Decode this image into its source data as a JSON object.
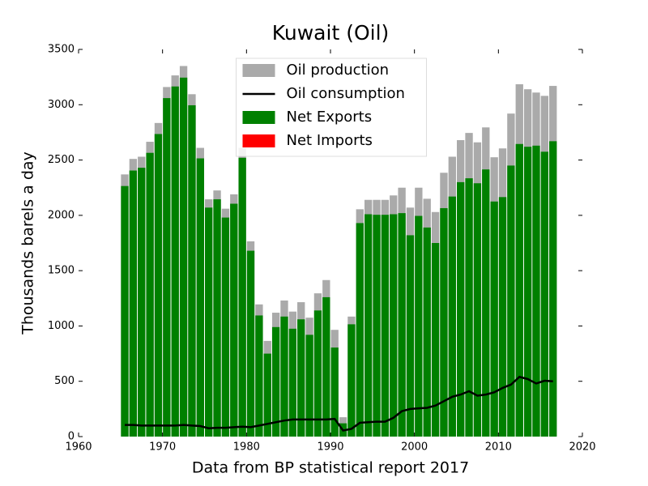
{
  "chart_data": {
    "type": "bar",
    "title": "Kuwait (Oil)",
    "x_label": "Data from BP statistical report 2017",
    "y_label": "Thousands barels a day",
    "x": [
      1965,
      1966,
      1967,
      1968,
      1969,
      1970,
      1971,
      1972,
      1973,
      1974,
      1975,
      1976,
      1977,
      1978,
      1979,
      1980,
      1981,
      1982,
      1983,
      1984,
      1985,
      1986,
      1987,
      1988,
      1989,
      1990,
      1991,
      1992,
      1993,
      1994,
      1995,
      1996,
      1997,
      1998,
      1999,
      2000,
      2001,
      2002,
      2003,
      2004,
      2005,
      2006,
      2007,
      2008,
      2009,
      2010,
      2011,
      2012,
      2013,
      2014,
      2015,
      2016
    ],
    "series": [
      {
        "name": "Oil production",
        "color": "#aaaaaa",
        "kind": "bar",
        "values": [
          2370,
          2510,
          2530,
          2665,
          2835,
          3160,
          3265,
          3350,
          3095,
          2610,
          2145,
          2225,
          2060,
          2190,
          2610,
          1765,
          1195,
          865,
          1120,
          1230,
          1130,
          1215,
          1075,
          1295,
          1415,
          965,
          175,
          1085,
          2055,
          2140,
          2140,
          2140,
          2180,
          2250,
          2070,
          2250,
          2150,
          2030,
          2385,
          2530,
          2680,
          2745,
          2660,
          2795,
          2525,
          2605,
          2920,
          3185,
          3140,
          3110,
          3080,
          3170
        ]
      },
      {
        "name": "Oil consumption",
        "color": "#000000",
        "kind": "line",
        "values": [
          105,
          105,
          100,
          100,
          100,
          100,
          100,
          105,
          100,
          95,
          75,
          80,
          80,
          85,
          90,
          85,
          100,
          115,
          130,
          145,
          155,
          155,
          155,
          155,
          155,
          160,
          55,
          70,
          125,
          130,
          135,
          135,
          170,
          230,
          250,
          255,
          260,
          280,
          320,
          360,
          380,
          410,
          370,
          380,
          400,
          440,
          470,
          540,
          520,
          480,
          505,
          500
        ]
      },
      {
        "name": "Net Exports",
        "color": "#008000",
        "kind": "bar",
        "values": [
          2265,
          2405,
          2430,
          2565,
          2735,
          3060,
          3165,
          3245,
          2995,
          2515,
          2070,
          2145,
          1980,
          2105,
          2520,
          1680,
          1095,
          750,
          990,
          1085,
          975,
          1060,
          920,
          1140,
          1260,
          805,
          120,
          1015,
          1930,
          2010,
          2005,
          2005,
          2010,
          2020,
          1820,
          1995,
          1890,
          1750,
          2065,
          2170,
          2300,
          2335,
          2290,
          2415,
          2125,
          2165,
          2450,
          2645,
          2620,
          2630,
          2575,
          2670
        ]
      },
      {
        "name": "Net Imports",
        "color": "#ff0000",
        "kind": "bar"
      }
    ],
    "xlim": [
      1960,
      2020
    ],
    "xticks": [
      1960,
      1970,
      1980,
      1990,
      2000,
      2010,
      2020
    ],
    "ylim": [
      0,
      3500
    ],
    "yticks": [
      0,
      500,
      1000,
      1500,
      2000,
      2500,
      3000,
      3500
    ],
    "legend": "upper center"
  }
}
